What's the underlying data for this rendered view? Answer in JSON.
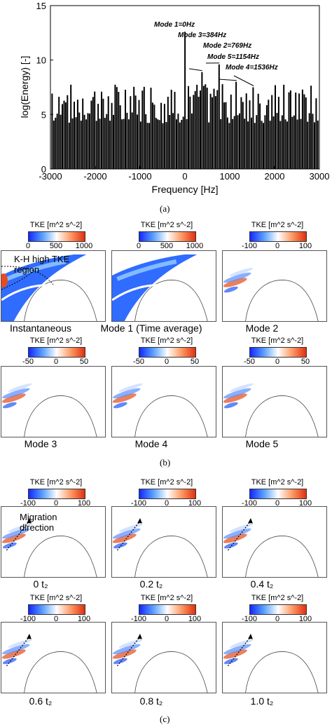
{
  "chart_data": {
    "type": "bar",
    "xlabel": "Frequency [Hz]",
    "ylabel": "log(Energy) [-]",
    "xlim": [
      -3000,
      3000
    ],
    "ylim": [
      0,
      15
    ],
    "xticks": [
      "-3000",
      "-2000",
      "-1000",
      "0",
      "1000",
      "2000",
      "3000"
    ],
    "yticks": [
      "0",
      "5",
      "10",
      "15"
    ],
    "grid": false,
    "bar_step_hz": 38,
    "modes": [
      {
        "label": "Mode 1=0Hz",
        "x": 0,
        "y": 12.6
      },
      {
        "label": "Mode 3=384Hz",
        "x": 384,
        "y": 8.9
      },
      {
        "label": "Mode 2=769Hz",
        "x": 769,
        "y": 9.6
      },
      {
        "label": "Mode 5=1154Hz",
        "x": 1154,
        "y": 8.0
      },
      {
        "label": "Mode 4=1536Hz",
        "x": 1536,
        "y": 7.5
      }
    ]
  },
  "figure": {
    "label_a": "(a)",
    "label_b": "(b)",
    "label_c": "(c)"
  },
  "colorbar": {
    "title": "TKE [m^2 s^-2]",
    "gradient": [
      "#1428ff",
      "#5aa0ff",
      "#ffffff",
      "#ff9a66",
      "#e03010"
    ]
  },
  "panel_b": [
    {
      "caption": "Instantaneous",
      "ticks": [
        "0",
        "500",
        "1000"
      ]
    },
    {
      "caption": "Mode 1 (Time average)",
      "ticks": [
        "0",
        "500",
        "1000"
      ]
    },
    {
      "caption": "Mode 2",
      "ticks": [
        "-100",
        "0",
        "100"
      ]
    },
    {
      "caption": "Mode 3",
      "ticks": [
        "-50",
        "0",
        "50"
      ]
    },
    {
      "caption": "Mode 4",
      "ticks": [
        "-50",
        "0",
        "50"
      ]
    },
    {
      "caption": "Mode 5",
      "ticks": [
        "-50",
        "0",
        "50"
      ]
    }
  ],
  "annotation_kh": "K-H high TKE region",
  "panel_c": [
    {
      "caption": "0 t₂",
      "ticks": [
        "-100",
        "0",
        "100"
      ]
    },
    {
      "caption": "0.2 t₂",
      "ticks": [
        "-100",
        "0",
        "100"
      ]
    },
    {
      "caption": "0.4 t₂",
      "ticks": [
        "-100",
        "0",
        "100"
      ]
    },
    {
      "caption": "0.6 t₂",
      "ticks": [
        "-100",
        "0",
        "100"
      ]
    },
    {
      "caption": "0.8 t₂",
      "ticks": [
        "-100",
        "0",
        "100"
      ]
    },
    {
      "caption": "1.0 t₂",
      "ticks": [
        "-100",
        "0",
        "100"
      ]
    }
  ],
  "annotation_migration": "Migration direction"
}
